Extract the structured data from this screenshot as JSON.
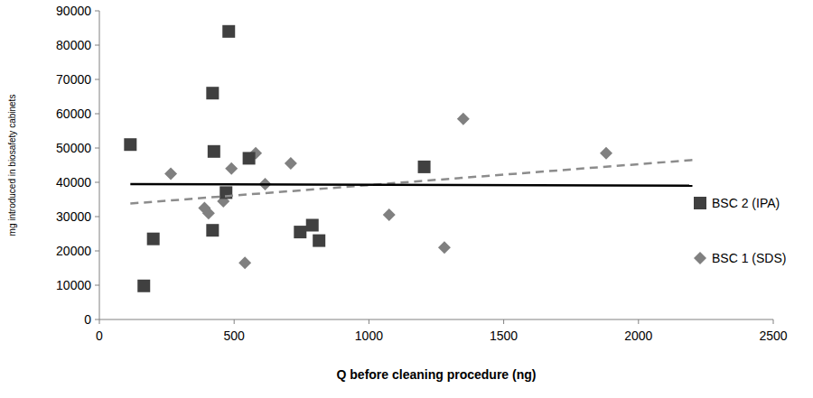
{
  "chart_data": {
    "type": "scatter",
    "x_label": "Q before cleaning procedure (ng)",
    "y_label": "mg introduced in biosafety cabinets",
    "xlim": [
      0,
      2500
    ],
    "xticks": [
      0,
      500,
      1000,
      1500,
      2000,
      2500
    ],
    "ylim": [
      0,
      90000
    ],
    "yticks": [
      0,
      10000,
      20000,
      30000,
      40000,
      50000,
      60000,
      70000,
      80000,
      90000
    ],
    "grid": false,
    "legend": "right",
    "series": [
      {
        "name": "BSC 1 (SDS)",
        "color": "#808080",
        "marker": "diamond",
        "x": [
          265,
          390,
          405,
          460,
          490,
          540,
          580,
          615,
          710,
          1075,
          1280,
          1350,
          1880
        ],
        "values": [
          42500,
          32500,
          31000,
          34500,
          44000,
          16500,
          48500,
          39500,
          45500,
          30500,
          21000,
          58500,
          48500
        ],
        "trendline": {
          "x": [
            115,
            2200
          ],
          "values": [
            33800,
            46500
          ],
          "line_style": "dashed",
          "color": "#8c8c8c"
        }
      },
      {
        "name": "BSC 2 (IPA)",
        "color": "#404040",
        "marker": "square",
        "x": [
          115,
          165,
          200,
          420,
          425,
          420,
          480,
          470,
          555,
          745,
          790,
          815,
          1205
        ],
        "values": [
          51000,
          9800,
          23500,
          66000,
          49000,
          26000,
          84000,
          37000,
          47000,
          25500,
          27500,
          23000,
          44500
        ],
        "trendline": {
          "x": [
            115,
            2200
          ],
          "values": [
            39500,
            39000
          ],
          "line_style": "solid",
          "color": "#000000"
        }
      }
    ]
  }
}
